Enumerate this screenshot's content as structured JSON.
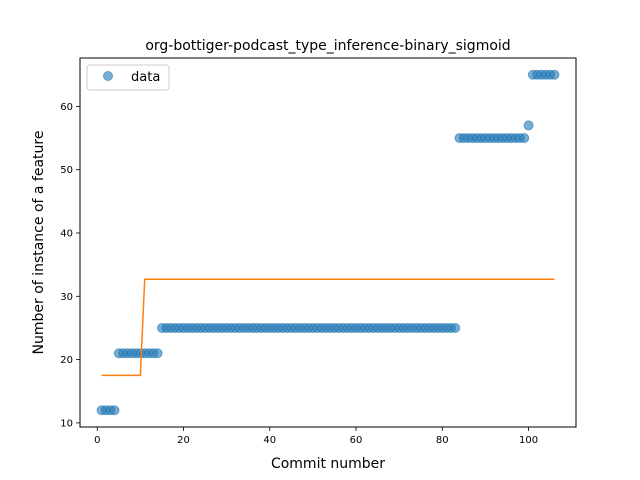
{
  "chart_data": {
    "type": "scatter",
    "title": "org-bottiger-podcast_type_inference-binary_sigmoid",
    "xlabel": "Commit number",
    "ylabel": "Number of instance of a feature",
    "xlim": [
      -4,
      111
    ],
    "ylim": [
      9.35,
      67.65
    ],
    "xticks": [
      0,
      20,
      40,
      60,
      80,
      100
    ],
    "yticks": [
      10,
      20,
      30,
      40,
      50,
      60
    ],
    "grid": false,
    "legend_position": "top-left",
    "colors": {
      "data": "#1f77b4",
      "fit": "#ff7f0e"
    },
    "series": [
      {
        "name": "data",
        "marker": "circle",
        "points": [
          [
            1,
            12
          ],
          [
            2,
            12
          ],
          [
            3,
            12
          ],
          [
            4,
            12
          ],
          [
            5,
            21
          ],
          [
            6,
            21
          ],
          [
            7,
            21
          ],
          [
            8,
            21
          ],
          [
            9,
            21
          ],
          [
            10,
            21
          ],
          [
            11,
            21
          ],
          [
            12,
            21
          ],
          [
            13,
            21
          ],
          [
            14,
            21
          ],
          [
            15,
            25
          ],
          [
            16,
            25
          ],
          [
            17,
            25
          ],
          [
            18,
            25
          ],
          [
            19,
            25
          ],
          [
            20,
            25
          ],
          [
            21,
            25
          ],
          [
            22,
            25
          ],
          [
            23,
            25
          ],
          [
            24,
            25
          ],
          [
            25,
            25
          ],
          [
            26,
            25
          ],
          [
            27,
            25
          ],
          [
            28,
            25
          ],
          [
            29,
            25
          ],
          [
            30,
            25
          ],
          [
            31,
            25
          ],
          [
            32,
            25
          ],
          [
            33,
            25
          ],
          [
            34,
            25
          ],
          [
            35,
            25
          ],
          [
            36,
            25
          ],
          [
            37,
            25
          ],
          [
            38,
            25
          ],
          [
            39,
            25
          ],
          [
            40,
            25
          ],
          [
            41,
            25
          ],
          [
            42,
            25
          ],
          [
            43,
            25
          ],
          [
            44,
            25
          ],
          [
            45,
            25
          ],
          [
            46,
            25
          ],
          [
            47,
            25
          ],
          [
            48,
            25
          ],
          [
            49,
            25
          ],
          [
            50,
            25
          ],
          [
            51,
            25
          ],
          [
            52,
            25
          ],
          [
            53,
            25
          ],
          [
            54,
            25
          ],
          [
            55,
            25
          ],
          [
            56,
            25
          ],
          [
            57,
            25
          ],
          [
            58,
            25
          ],
          [
            59,
            25
          ],
          [
            60,
            25
          ],
          [
            61,
            25
          ],
          [
            62,
            25
          ],
          [
            63,
            25
          ],
          [
            64,
            25
          ],
          [
            65,
            25
          ],
          [
            66,
            25
          ],
          [
            67,
            25
          ],
          [
            68,
            25
          ],
          [
            69,
            25
          ],
          [
            70,
            25
          ],
          [
            71,
            25
          ],
          [
            72,
            25
          ],
          [
            73,
            25
          ],
          [
            74,
            25
          ],
          [
            75,
            25
          ],
          [
            76,
            25
          ],
          [
            77,
            25
          ],
          [
            78,
            25
          ],
          [
            79,
            25
          ],
          [
            80,
            25
          ],
          [
            81,
            25
          ],
          [
            82,
            25
          ],
          [
            83,
            25
          ],
          [
            84,
            55
          ],
          [
            85,
            55
          ],
          [
            86,
            55
          ],
          [
            87,
            55
          ],
          [
            88,
            55
          ],
          [
            89,
            55
          ],
          [
            90,
            55
          ],
          [
            91,
            55
          ],
          [
            92,
            55
          ],
          [
            93,
            55
          ],
          [
            94,
            55
          ],
          [
            95,
            55
          ],
          [
            96,
            55
          ],
          [
            97,
            55
          ],
          [
            98,
            55
          ],
          [
            99,
            55
          ],
          [
            100,
            57
          ],
          [
            101,
            65
          ],
          [
            102,
            65
          ],
          [
            103,
            65
          ],
          [
            104,
            65
          ],
          [
            105,
            65
          ],
          [
            106,
            65
          ]
        ]
      },
      {
        "marker": "line",
        "points": [
          [
            1,
            17.5
          ],
          [
            10,
            17.5
          ],
          [
            11,
            32.7
          ],
          [
            106,
            32.7
          ]
        ]
      }
    ]
  }
}
